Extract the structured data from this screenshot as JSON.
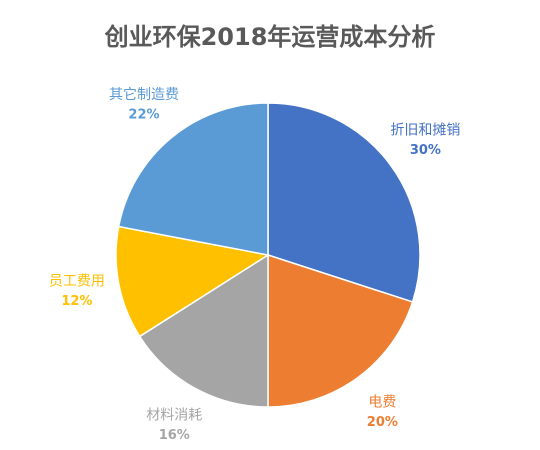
{
  "chart_data": {
    "type": "pie",
    "title": "创业环保2018年运营成本分析",
    "categories": [
      "折旧和摊销",
      "电费",
      "材料消耗",
      "员工费用",
      "其它制造费"
    ],
    "values": [
      30,
      20,
      16,
      12,
      22
    ],
    "value_labels": [
      "30%",
      "20%",
      "16%",
      "12%",
      "22%"
    ],
    "colors": [
      "#4472c4",
      "#ed7d31",
      "#a5a5a5",
      "#ffc000",
      "#5b9bd5"
    ]
  }
}
